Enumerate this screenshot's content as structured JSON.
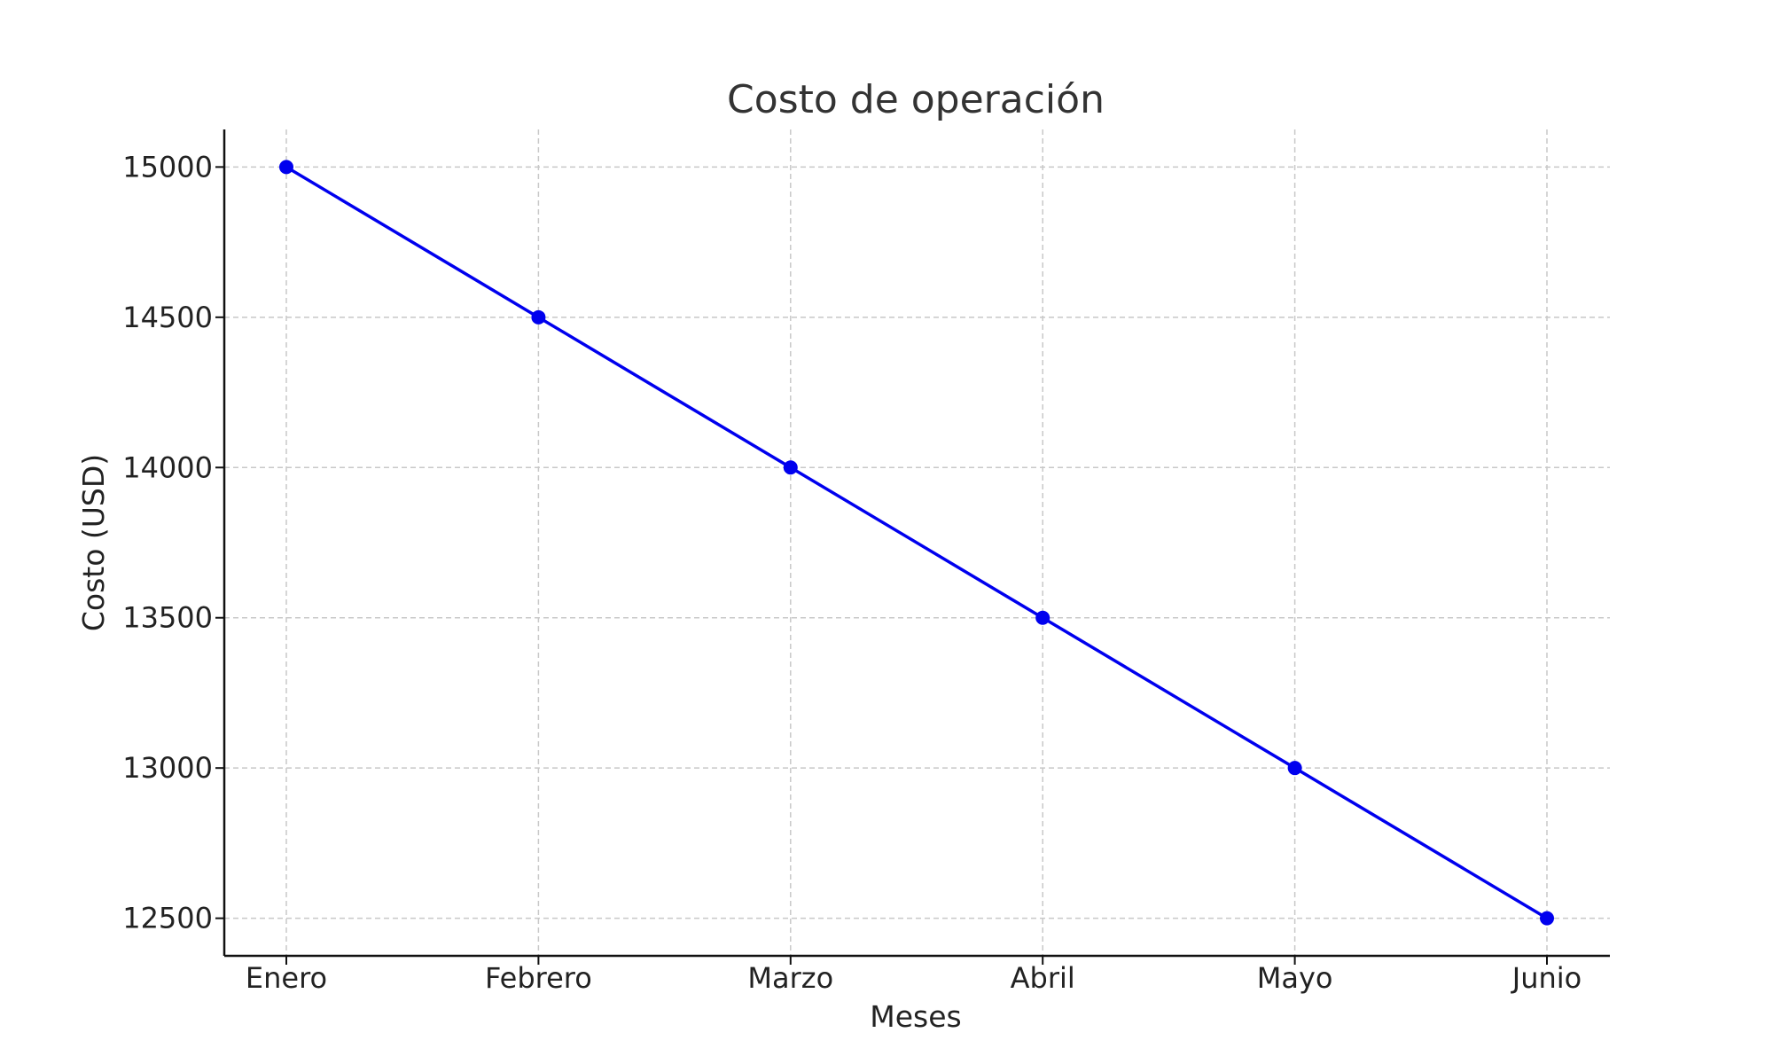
{
  "chart_data": {
    "type": "line",
    "title": "Costo de operación",
    "xlabel": "Meses",
    "ylabel": "Costo (USD)",
    "categories": [
      "Enero",
      "Febrero",
      "Marzo",
      "Abril",
      "Mayo",
      "Junio"
    ],
    "series": [
      {
        "values": [
          15000,
          14500,
          14000,
          13500,
          13000,
          12500
        ],
        "color": "#0000ee",
        "marker": "circle"
      }
    ],
    "yticks": [
      12500,
      13000,
      13500,
      14000,
      14500,
      15000
    ],
    "ytick_labels": [
      "12500",
      "13000",
      "13500",
      "14000",
      "14500",
      "15000"
    ],
    "ylim": [
      12375,
      15125
    ],
    "grid": true,
    "grid_style": "dashed",
    "legend": "none"
  }
}
